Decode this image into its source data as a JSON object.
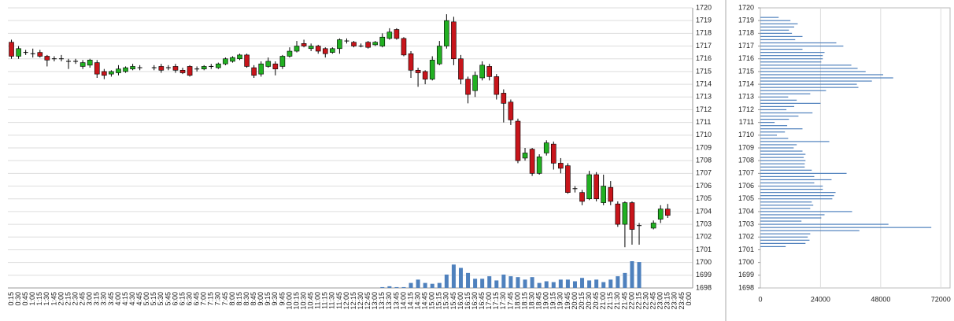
{
  "chart_data": [
    {
      "type": "candlestick",
      "categories": [
        "0:15",
        "0:30",
        "0:45",
        "1:00",
        "1:15",
        "1:30",
        "1:45",
        "2:00",
        "2:15",
        "2:30",
        "2:45",
        "3:00",
        "3:15",
        "3:30",
        "3:45",
        "4:00",
        "4:15",
        "4:30",
        "4:45",
        "5:00",
        "5:15",
        "5:30",
        "5:45",
        "6:00",
        "6:15",
        "6:30",
        "6:45",
        "7:00",
        "7:15",
        "7:30",
        "7:45",
        "8:00",
        "8:15",
        "8:30",
        "8:45",
        "9:00",
        "9:15",
        "9:30",
        "9:45",
        "10:00",
        "10:15",
        "10:30",
        "10:45",
        "11:00",
        "11:15",
        "11:30",
        "11:45",
        "12:00",
        "12:15",
        "12:30",
        "12:45",
        "13:00",
        "13:15",
        "13:30",
        "13:45",
        "14:00",
        "14:15",
        "14:30",
        "14:45",
        "15:00",
        "15:15",
        "15:30",
        "15:45",
        "16:00",
        "16:15",
        "16:30",
        "16:45",
        "17:00",
        "17:15",
        "17:30",
        "17:45",
        "18:00",
        "18:15",
        "18:30",
        "18:45",
        "19:00",
        "19:15",
        "19:30",
        "19:45",
        "20:00",
        "20:15",
        "20:30",
        "20:45",
        "21:00",
        "21:15",
        "21:30",
        "21:45",
        "22:00",
        "22:15",
        "22:30",
        "22:45",
        "23:00",
        "23:15",
        "23:30",
        "23:45",
        "0:00"
      ],
      "open": [
        1717.3,
        1716.2,
        1716.5,
        1716.4,
        1716.5,
        1716.2,
        1716.0,
        1716.0,
        1715.8,
        1715.8,
        1715.4,
        1715.5,
        1715.7,
        1715.0,
        1714.8,
        1714.9,
        1715.0,
        1715.2,
        1715.3,
        null,
        1715.3,
        1715.4,
        1715.3,
        1715.4,
        1715.1,
        1715.4,
        1715.2,
        1715.2,
        1715.4,
        1715.3,
        1715.6,
        1715.8,
        1716.0,
        1716.3,
        1715.3,
        1714.8,
        1715.4,
        1715.6,
        1715.4,
        1716.2,
        1716.6,
        1717.2,
        1716.8,
        1717.0,
        1716.8,
        1716.5,
        1716.8,
        1717.4,
        1717.3,
        1717.0,
        1717.3,
        1717.1,
        1717.0,
        1717.6,
        1718.3,
        1717.6,
        1716.4,
        1715.1,
        1715.0,
        1714.4,
        1715.6,
        1717.0,
        1718.9,
        1716.0,
        1714.4,
        1713.5,
        1714.5,
        1715.4,
        1714.6,
        1713.3,
        1712.6,
        1711.1,
        1708.2,
        1708.9,
        1707.0,
        1708.6,
        1709.3,
        1707.8,
        1707.6,
        1705.8,
        1705.5,
        1705.0,
        1706.9,
        1704.7,
        1705.9,
        1704.6,
        1703.0,
        1704.7,
        1702.9,
        null,
        1702.7,
        1703.4,
        1704.2,
        null,
        null,
        null
      ],
      "high": [
        1717.5,
        1717.0,
        1716.7,
        1716.8,
        1716.7,
        1716.3,
        1716.2,
        1716.3,
        1716.0,
        1716.0,
        1715.9,
        1716.0,
        1715.9,
        1715.2,
        1715.1,
        1715.5,
        1715.4,
        1715.6,
        1715.5,
        null,
        1715.5,
        1715.6,
        1715.5,
        1715.6,
        1715.3,
        1715.5,
        1715.4,
        1715.5,
        1715.6,
        1715.7,
        1716.1,
        1716.2,
        1716.4,
        1716.4,
        1715.5,
        1715.8,
        1716.1,
        1715.8,
        1716.3,
        1716.9,
        1717.4,
        1717.5,
        1717.2,
        1717.1,
        1716.9,
        1716.9,
        1717.6,
        1717.6,
        1717.4,
        1717.2,
        1717.4,
        1717.4,
        1718.0,
        1718.4,
        1718.4,
        1717.7,
        1716.6,
        1715.3,
        1715.1,
        1716.2,
        1717.4,
        1719.5,
        1719.3,
        1716.3,
        1714.6,
        1715.0,
        1715.8,
        1715.6,
        1714.8,
        1713.6,
        1712.8,
        1711.3,
        1709.0,
        1709.0,
        1708.5,
        1709.6,
        1709.5,
        1708.2,
        1707.8,
        1706.0,
        1705.7,
        1707.2,
        1707.1,
        1706.9,
        1706.4,
        1704.8,
        1704.8,
        1704.8,
        1703.1,
        null,
        1703.3,
        1704.5,
        1704.6,
        null,
        null,
        null
      ],
      "low": [
        1716.0,
        1716.0,
        1716.3,
        1716.1,
        1716.1,
        1715.4,
        1715.8,
        1715.8,
        1715.2,
        1715.6,
        1715.2,
        1715.3,
        1714.5,
        1714.4,
        1714.6,
        1714.7,
        1714.9,
        1715.1,
        1715.1,
        null,
        1715.1,
        1714.9,
        1715.1,
        1714.9,
        1714.8,
        1714.6,
        1715.0,
        1715.1,
        1715.2,
        1715.2,
        1715.5,
        1715.7,
        1715.9,
        1715.3,
        1714.5,
        1714.6,
        1715.3,
        1714.7,
        1715.2,
        1716.1,
        1716.5,
        1716.9,
        1716.6,
        1716.4,
        1716.1,
        1716.4,
        1716.4,
        1717.2,
        1716.9,
        1716.9,
        1716.8,
        1717.0,
        1716.9,
        1717.5,
        1717.5,
        1716.2,
        1714.5,
        1713.8,
        1714.0,
        1714.3,
        1715.5,
        1716.8,
        1715.5,
        1714.0,
        1712.5,
        1713.0,
        1714.3,
        1714.3,
        1712.8,
        1711.0,
        1710.8,
        1707.8,
        1708.0,
        1706.8,
        1706.9,
        1708.4,
        1707.3,
        1707.0,
        1705.4,
        1705.5,
        1704.5,
        1704.9,
        1704.8,
        1704.5,
        1704.5,
        1702.8,
        1701.2,
        1701.4,
        1701.4,
        null,
        1702.6,
        1703.1,
        1703.5,
        null,
        null,
        null
      ],
      "close": [
        1716.2,
        1716.8,
        1716.5,
        1716.4,
        1716.2,
        1715.9,
        1716.0,
        1716.0,
        1715.8,
        1715.8,
        1715.7,
        1715.9,
        1714.8,
        1714.7,
        1715.0,
        1715.2,
        1715.3,
        1715.4,
        1715.3,
        null,
        1715.3,
        1715.1,
        1715.3,
        1715.1,
        1714.9,
        1714.7,
        1715.2,
        1715.4,
        1715.4,
        1715.6,
        1716.0,
        1716.1,
        1716.3,
        1715.4,
        1714.7,
        1715.6,
        1715.8,
        1715.2,
        1716.2,
        1716.6,
        1717.0,
        1717.0,
        1717.0,
        1716.6,
        1716.4,
        1716.8,
        1717.5,
        1717.4,
        1717.0,
        1717.0,
        1716.9,
        1717.3,
        1717.7,
        1718.1,
        1717.6,
        1716.3,
        1715.1,
        1714.9,
        1714.4,
        1715.9,
        1717.0,
        1719.0,
        1716.0,
        1714.4,
        1713.2,
        1714.7,
        1715.5,
        1714.6,
        1713.2,
        1712.5,
        1711.2,
        1708.0,
        1708.6,
        1707.0,
        1708.3,
        1709.4,
        1707.8,
        1707.4,
        1705.5,
        1705.8,
        1704.8,
        1706.9,
        1705.0,
        1706.0,
        1704.8,
        1703.0,
        1704.7,
        1702.6,
        1702.9,
        null,
        1703.1,
        1704.2,
        1703.7,
        null,
        null,
        null
      ],
      "volume": [
        null,
        null,
        null,
        null,
        null,
        null,
        null,
        null,
        null,
        null,
        null,
        null,
        null,
        null,
        null,
        null,
        null,
        null,
        null,
        null,
        null,
        null,
        null,
        null,
        null,
        null,
        null,
        null,
        null,
        null,
        null,
        null,
        null,
        null,
        null,
        null,
        null,
        null,
        null,
        null,
        null,
        null,
        null,
        null,
        null,
        null,
        null,
        null,
        null,
        null,
        null,
        null,
        1,
        2,
        1,
        1,
        6,
        10,
        6,
        5,
        6,
        16,
        28,
        24,
        18,
        11,
        11,
        14,
        9,
        16,
        14,
        13,
        10,
        13,
        6,
        8,
        7,
        10,
        10,
        8,
        12,
        9,
        10,
        7,
        10,
        14,
        18,
        32,
        31,
        null,
        null,
        null,
        null,
        null,
        null,
        null
      ],
      "up_color": "#22b022",
      "down_color": "#c8151b",
      "volume_color": "#4f81bd",
      "ylim": [
        1698,
        1720
      ],
      "yticks": [
        1698,
        1699,
        1700,
        1701,
        1702,
        1703,
        1704,
        1705,
        1706,
        1707,
        1708,
        1709,
        1710,
        1711,
        1712,
        1713,
        1714,
        1715,
        1716,
        1717,
        1718,
        1719,
        1720
      ],
      "grid": true
    },
    {
      "type": "bar",
      "orientation": "horizontal",
      "color": "#4f81bd",
      "y": [
        1719.25,
        1719,
        1718.75,
        1718.5,
        1718.25,
        1718,
        1717.75,
        1717.5,
        1717.25,
        1717,
        1716.75,
        1716.5,
        1716.25,
        1716,
        1715.75,
        1715.5,
        1715.25,
        1715,
        1714.75,
        1714.5,
        1714.25,
        1714,
        1713.75,
        1713.5,
        1713.25,
        1713,
        1712.75,
        1712.5,
        1712.25,
        1712,
        1711.75,
        1711.5,
        1711.25,
        1711,
        1710.75,
        1710.5,
        1710.25,
        1710,
        1709.75,
        1709.5,
        1709.25,
        1709,
        1708.75,
        1708.5,
        1708.25,
        1708,
        1707.75,
        1707.5,
        1707.25,
        1707,
        1706.75,
        1706.5,
        1706.25,
        1706,
        1705.75,
        1705.5,
        1705.25,
        1705,
        1704.75,
        1704.5,
        1704.25,
        1704,
        1703.75,
        1703.5,
        1703.25,
        1703,
        1702.75,
        1702.5,
        1702.25,
        1702,
        1701.75,
        1701.5,
        1701.25
      ],
      "values": [
        7300,
        12000,
        14900,
        13500,
        11400,
        12600,
        16800,
        13900,
        30300,
        33100,
        16800,
        25600,
        24900,
        24900,
        24300,
        36300,
        38800,
        42000,
        49000,
        53000,
        44500,
        38500,
        39100,
        26200,
        19900,
        11100,
        14500,
        24000,
        13500,
        10400,
        20800,
        15200,
        11400,
        5700,
        10700,
        16800,
        9800,
        6600,
        11100,
        27500,
        14500,
        13300,
        16800,
        18000,
        17300,
        18000,
        17700,
        17700,
        20500,
        34400,
        21500,
        28400,
        21500,
        24900,
        24900,
        30000,
        29400,
        28700,
        20500,
        21100,
        19900,
        36600,
        25600,
        24300,
        16400,
        51100,
        68200,
        39500,
        19900,
        18900,
        19600,
        18000,
        10100
      ],
      "xlim": [
        0,
        76000
      ],
      "xticks": [
        0,
        24000,
        48000,
        72000
      ],
      "ylim": [
        1698,
        1720
      ],
      "yticks": [
        1698,
        1699,
        1700,
        1701,
        1702,
        1703,
        1704,
        1705,
        1706,
        1707,
        1708,
        1709,
        1710,
        1711,
        1712,
        1713,
        1714,
        1715,
        1716,
        1717,
        1718,
        1719,
        1720
      ],
      "grid": true
    }
  ]
}
